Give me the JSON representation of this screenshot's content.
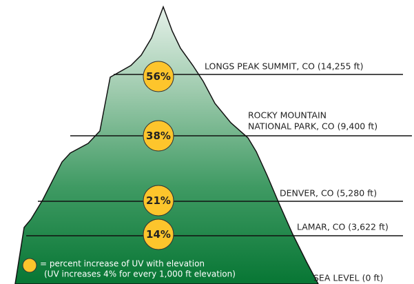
{
  "levels": [
    {
      "label": [
        "LONGS PEAK SUMMIT, CO (14,255 ft)"
      ],
      "badge": "56%"
    },
    {
      "label": [
        "ROCKY MOUNTAIN",
        "NATIONAL PARK, CO (9,400 ft)"
      ],
      "badge": "38%"
    },
    {
      "label": [
        "DENVER, CO (5,280 ft)"
      ],
      "badge": "21%"
    },
    {
      "label": [
        "LAMAR, CO (3,622 ft)"
      ],
      "badge": "14%"
    }
  ],
  "sea_level": "SEA LEVEL (0 ft)",
  "legend": [
    "= percent increase of UV with elevation",
    "(UV increases 4% for every 1,000 ft elevation)"
  ]
}
